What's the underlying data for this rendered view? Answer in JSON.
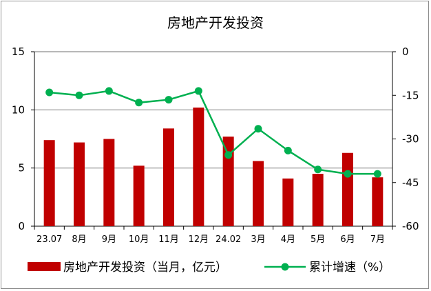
{
  "chart_data": {
    "type": "bar+line",
    "title": "房地产开发投资",
    "categories": [
      "23.07",
      "8月",
      "9月",
      "10月",
      "11月",
      "12月",
      "24.02",
      "3月",
      "4月",
      "5月",
      "6月",
      "7月"
    ],
    "series": [
      {
        "name": "房地产开发投资（当月，亿元）",
        "type": "bar",
        "axis": "left",
        "color": "#c00000",
        "values": [
          7.4,
          7.2,
          7.5,
          5.2,
          8.4,
          10.2,
          7.7,
          5.6,
          4.1,
          4.5,
          6.3,
          4.2
        ]
      },
      {
        "name": "累计增速（%）",
        "type": "line",
        "axis": "right",
        "color": "#00b050",
        "values": [
          -14.0,
          -15.0,
          -13.5,
          -17.5,
          -16.5,
          -13.5,
          -35.5,
          -26.5,
          -34.0,
          -40.5,
          -42.0,
          -42.0
        ]
      }
    ],
    "left_axis": {
      "range": [
        0,
        15
      ],
      "ticks": [
        "0",
        "5",
        "10",
        "15"
      ]
    },
    "right_axis": {
      "range": [
        -60,
        0
      ],
      "ticks": [
        "0",
        "-15",
        "-30",
        "-45",
        "-60"
      ]
    },
    "grid": "horizontal",
    "legend_position": "bottom"
  }
}
